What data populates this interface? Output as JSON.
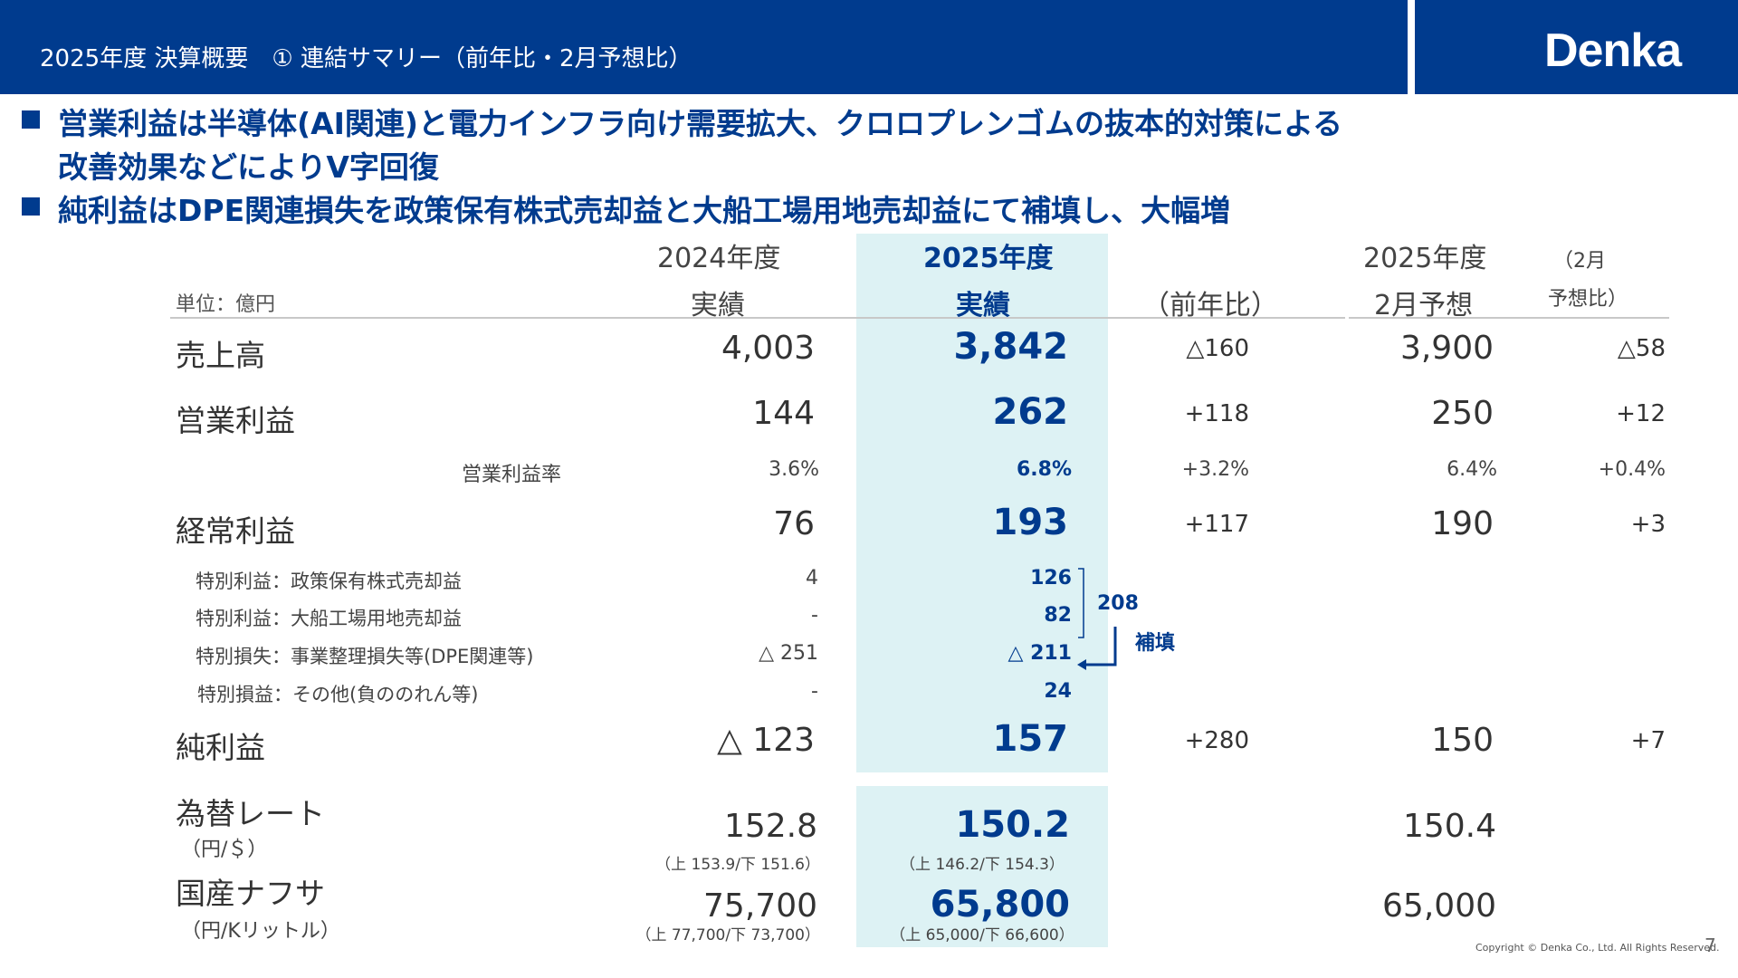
{
  "header": {
    "title": "2025年度 決算概要　① 連結サマリー（前年比・2月予想比）",
    "logo": "Denka"
  },
  "bullets": [
    {
      "line1": "営業利益は半導体(AI関連)と電力インフラ向け需要拡大、クロロプレンゴムの抜本的対策による",
      "line2": "改善効果などによりV字回復"
    },
    {
      "line1": "純利益はDPE関連損失を政策保有株式売却益と大船工場用地売却益にて補填し、大幅増"
    }
  ],
  "table": {
    "unit": "単位：億円",
    "columns": {
      "fy2024_l1": "2024年度",
      "fy2024_l2": "実績",
      "fy2025_l1": "2025年度",
      "fy2025_l2": "実績",
      "yoy": "（前年比）",
      "fcst_l1": "2025年度",
      "fcst_l2": "2月予想",
      "vsfcst_l1": "（2月",
      "vsfcst_l2": "予想比）"
    },
    "sales": {
      "label": "売上高",
      "fy2024": "4,003",
      "fy2025": "3,842",
      "yoy": "△160",
      "fcst": "3,900",
      "vsfcst": "△58"
    },
    "op": {
      "label": "営業利益",
      "fy2024": "144",
      "fy2025": "262",
      "yoy": "+118",
      "fcst": "250",
      "vsfcst": "+12"
    },
    "op_margin": {
      "label": "営業利益率",
      "fy2024": "3.6%",
      "fy2025": "6.8%",
      "yoy": "+3.2%",
      "fcst": "6.4%",
      "vsfcst": "+0.4%"
    },
    "ordinary": {
      "label": "経常利益",
      "fy2024": "76",
      "fy2025": "193",
      "yoy": "+117",
      "fcst": "190",
      "vsfcst": "+3"
    },
    "extra": [
      {
        "label": "特別利益：政策保有株式売却益",
        "fy2024": "4",
        "fy2025": "126"
      },
      {
        "label": "特別利益：大船工場用地売却益",
        "fy2024": "-",
        "fy2025": "82"
      },
      {
        "label": "特別損失：事業整理損失等(DPE関連等)",
        "fy2024": "△ 251",
        "fy2025": "△ 211"
      },
      {
        "label": "特別損益：その他(負ののれん等)",
        "fy2024": "-",
        "fy2025": "24"
      }
    ],
    "bracket_sum": "208",
    "bracket_note": "補填",
    "net": {
      "label": "純利益",
      "fy2024": "△ 123",
      "fy2025": "157",
      "yoy": "+280",
      "fcst": "150",
      "vsfcst": "+7"
    },
    "fx": {
      "label": "為替レート",
      "unit": "（円/＄）",
      "fy2024": "152.8",
      "fy2024_range": "（上 153.9/下 151.6）",
      "fy2025": "150.2",
      "fy2025_range": "（上 146.2/下 154.3）",
      "fcst": "150.4"
    },
    "naphtha": {
      "label": "国産ナフサ",
      "unit": "（円/Kリットル）",
      "fy2024": "75,700",
      "fy2024_range": "（上 77,700/下 73,700）",
      "fy2025": "65,800",
      "fy2025_range": "（上 65,000/下 66,600）",
      "fcst": "65,000"
    }
  },
  "footer": {
    "copyright": "Copyright © Denka Co., Ltd. All Rights Reserved.",
    "page": "7"
  }
}
